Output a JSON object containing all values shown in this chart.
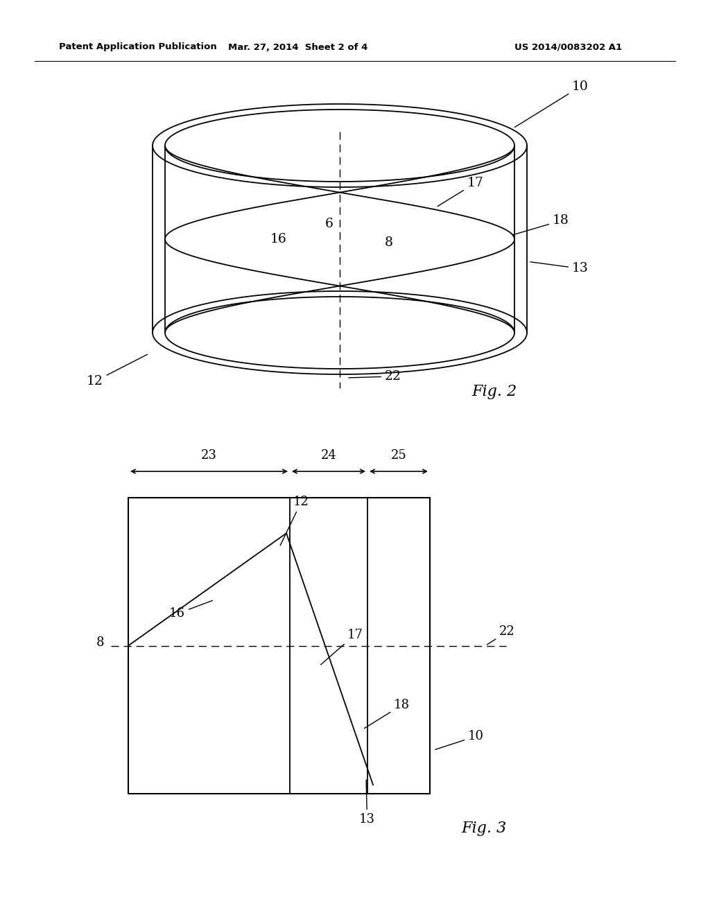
{
  "background_color": "#ffffff",
  "header_left": "Patent Application Publication",
  "header_mid": "Mar. 27, 2014  Sheet 2 of 4",
  "header_right": "US 2014/0083202 A1",
  "fig2_label": "Fig. 2",
  "fig3_label": "Fig. 3"
}
